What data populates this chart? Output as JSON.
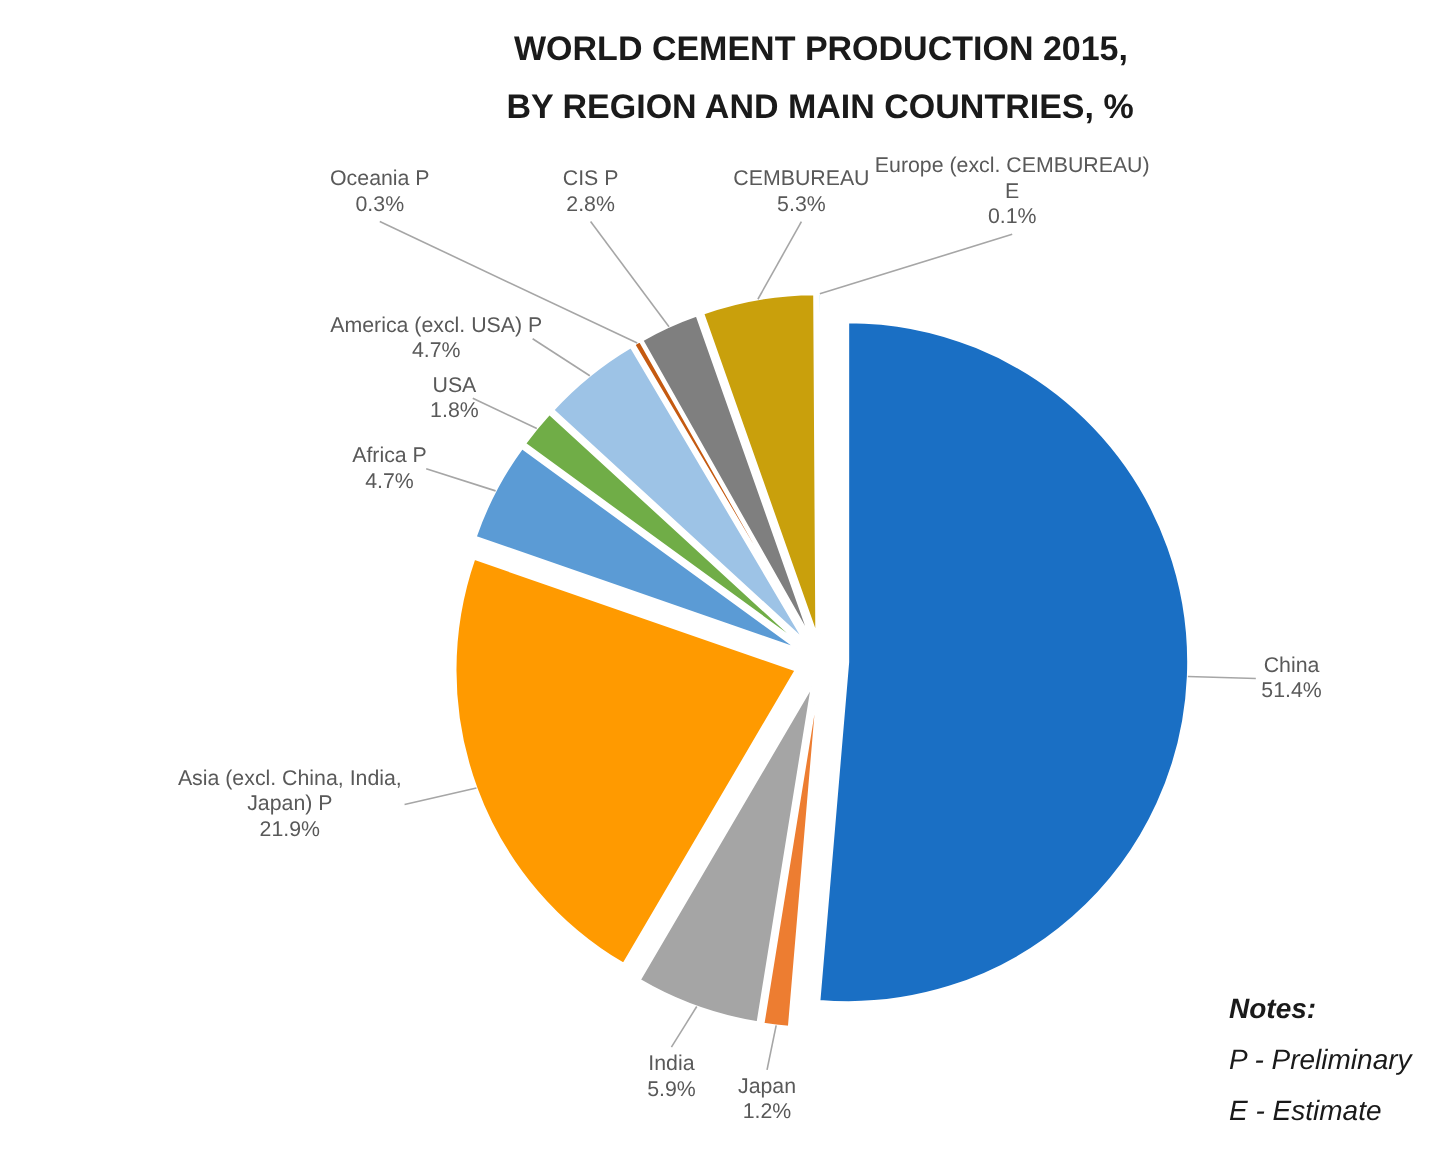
{
  "chart_data": {
    "type": "pie",
    "title": "WORLD CEMENT PRODUCTION 2015,\nBY REGION AND MAIN COUNTRIES, %",
    "categories": [
      "China",
      "Japan",
      "India",
      "Asia (excl. China, India, Japan) P",
      "Africa P",
      "USA",
      "America (excl. USA) P",
      "Oceania P",
      "CIS P",
      "CEMBUREAU",
      "Europe (excl. CEMBUREAU) E"
    ],
    "values": [
      51.4,
      1.2,
      5.9,
      21.9,
      4.7,
      1.8,
      4.7,
      0.3,
      2.8,
      5.3,
      0.1
    ],
    "colors": [
      "#1a6fc4",
      "#ed7d31",
      "#a5a5a5",
      "#ff9a00",
      "#5b9bd5",
      "#70ad47",
      "#9dc3e6",
      "#c55a11",
      "#7f7f7f",
      "#c9a00c",
      "#4fc3f7"
    ],
    "value_labels": [
      "51.4%",
      "1.2%",
      "5.9%",
      "21.9%",
      "4.7%",
      "1.8%",
      "4.7%",
      "0.3%",
      "2.8%",
      "5.3%",
      "0.1%"
    ],
    "annotations": [
      "Notes:",
      "P - Preliminary",
      "E - Estimate"
    ]
  }
}
